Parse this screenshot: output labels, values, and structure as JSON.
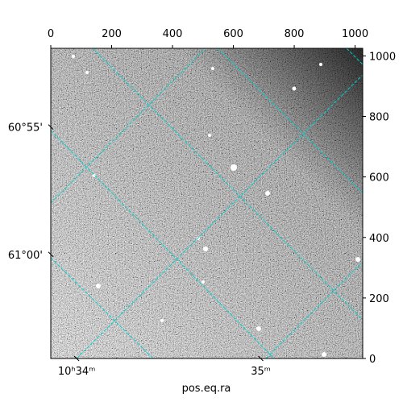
{
  "chart_data": {
    "type": "image",
    "xlabel": "pos.eq.ra",
    "xlim": [
      0,
      1025
    ],
    "ylim": [
      0,
      1025
    ],
    "xticks": [
      0,
      200,
      400,
      600,
      800,
      1000
    ],
    "yticks": [
      0,
      200,
      400,
      600,
      800,
      1000
    ],
    "ra_ticks": [
      {
        "value": 85,
        "label": "10ʰ34ᵐ"
      },
      {
        "value": 690,
        "label": "35ᵐ"
      }
    ],
    "dec_ticks": [
      {
        "value": 765,
        "label": "60°55'"
      },
      {
        "value": 344,
        "label": "61°00'"
      }
    ],
    "grid_color": "#00d0d0"
  }
}
